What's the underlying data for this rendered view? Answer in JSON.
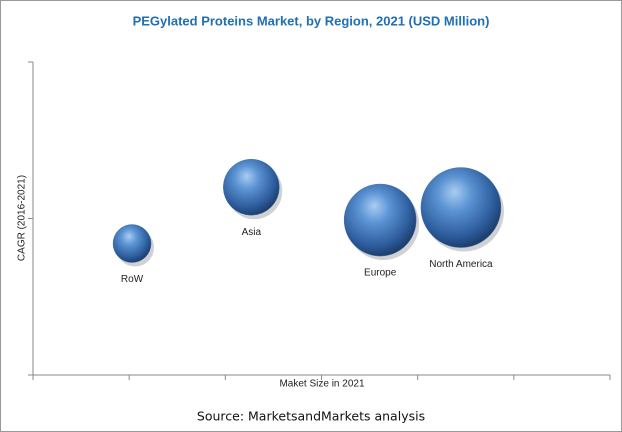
{
  "chart_data": {
    "type": "bubble",
    "title": "PEGylated Proteins Market, by Region, 2021 (USD Million)",
    "x_label": "Maket Size in 2021",
    "y_label": "CAGR (2016-2021)",
    "source": "Source: MarketsandMarkets analysis",
    "labels": [
      "RoW",
      "Asia",
      "Europe",
      "North America"
    ],
    "x": [
      1.03,
      2.27,
      3.61,
      4.45
    ],
    "y": [
      0.84,
      1.2,
      0.99,
      1.07
    ],
    "sizes": [
      19,
      28,
      36,
      40
    ],
    "color": "#3a70b8",
    "xlim": [
      0,
      6
    ],
    "xticks": [
      0,
      1,
      2,
      3,
      4,
      5,
      6
    ],
    "ylim": [
      0,
      2
    ],
    "yticks": [
      0,
      1,
      2
    ]
  }
}
